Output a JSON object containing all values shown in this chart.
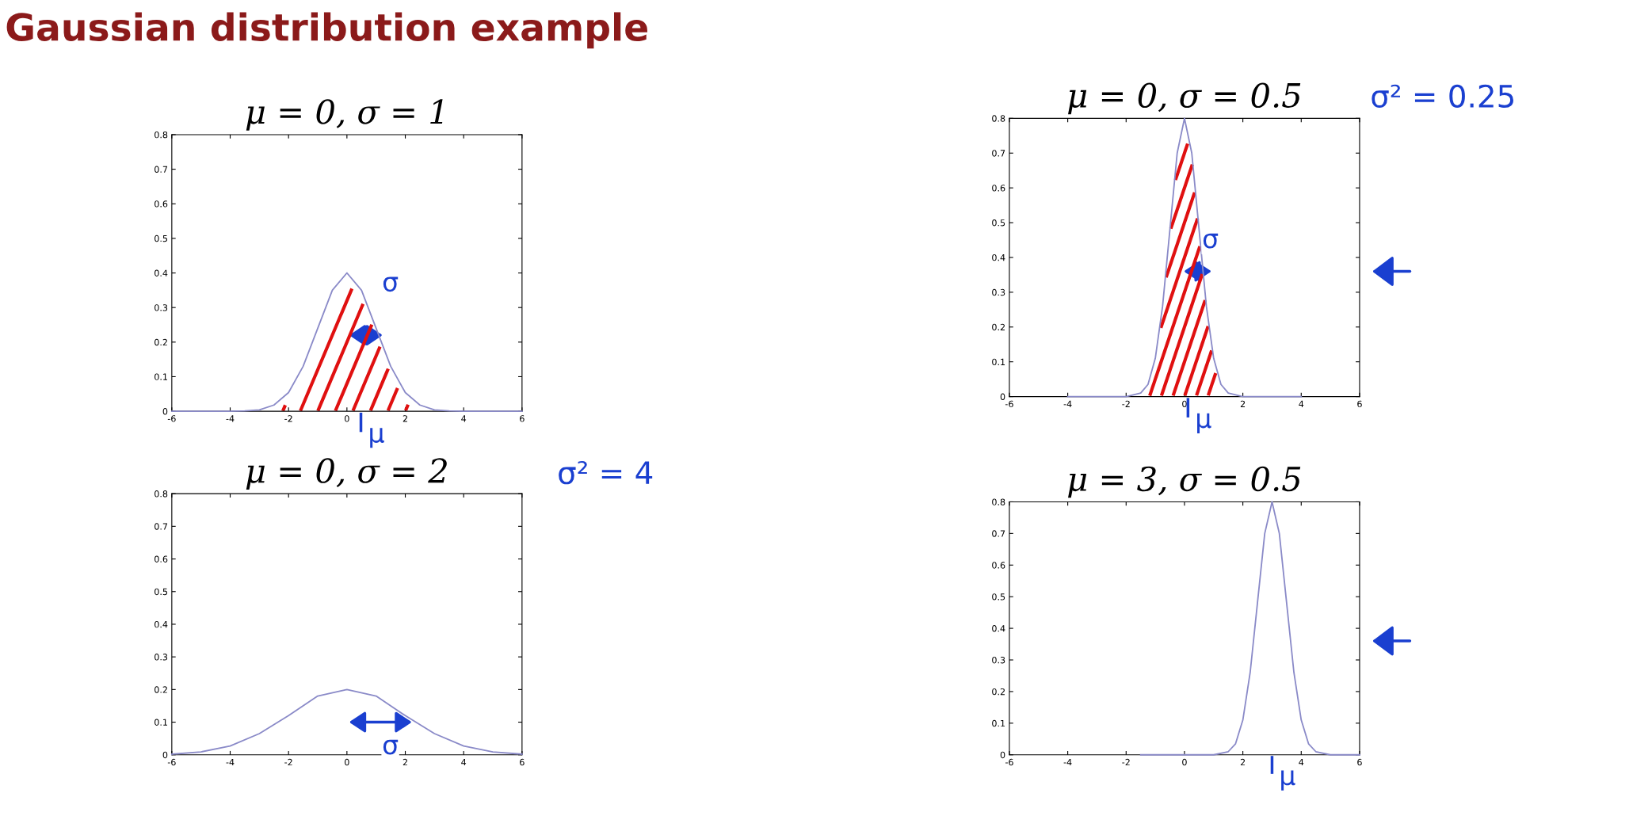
{
  "chart_data": [
    {
      "type": "line",
      "title": "μ = 0, σ = 1",
      "annotations": [
        "Gaussian distribution example",
        "σ",
        "μ"
      ],
      "series": [
        {
          "color": "#8a8ac8",
          "x": [
            -6,
            -4,
            -3.5,
            -3,
            -2.5,
            -2,
            -1.5,
            -1,
            -0.5,
            0,
            0.5,
            1,
            1.5,
            2,
            2.5,
            3,
            3.5,
            4,
            6
          ],
          "values": [
            0,
            0,
            0.001,
            0.004,
            0.018,
            0.054,
            0.13,
            0.24,
            0.35,
            0.4,
            0.35,
            0.24,
            0.13,
            0.054,
            0.018,
            0.004,
            0.001,
            0,
            0
          ]
        }
      ],
      "xlim": [
        -6,
        6
      ],
      "ylim": [
        0,
        0.8
      ],
      "xticks": [
        -6,
        -4,
        -2,
        0,
        2,
        4,
        6
      ],
      "yticks": [
        0,
        0.1,
        0.2,
        0.3,
        0.4,
        0.5,
        0.6,
        0.7,
        0.8
      ],
      "grid": false,
      "legend": false,
      "marker": "none",
      "line_style": "solid"
    },
    {
      "type": "line",
      "title": "μ = 0, σ = 0.5",
      "annotations": [
        "σ² = 0.25",
        "σ",
        "μ"
      ],
      "series": [
        {
          "color": "#8a8ac8",
          "x": [
            -4,
            -2,
            -1.5,
            -1.25,
            -1,
            -0.75,
            -0.5,
            -0.25,
            0,
            0.25,
            0.5,
            0.75,
            1,
            1.25,
            1.5,
            2,
            4
          ],
          "values": [
            0,
            0,
            0.01,
            0.035,
            0.11,
            0.26,
            0.48,
            0.7,
            0.8,
            0.7,
            0.48,
            0.26,
            0.11,
            0.035,
            0.01,
            0,
            0
          ]
        }
      ],
      "xlim": [
        -6,
        6
      ],
      "ylim": [
        0,
        0.8
      ],
      "xticks": [
        -6,
        -4,
        -2,
        0,
        2,
        4,
        6
      ],
      "yticks": [
        0,
        0.1,
        0.2,
        0.3,
        0.4,
        0.5,
        0.6,
        0.7,
        0.8
      ],
      "grid": false,
      "legend": false,
      "marker": "none",
      "line_style": "solid"
    },
    {
      "type": "line",
      "title": "μ = 0, σ = 2",
      "annotations": [
        "σ² = 4",
        "σ"
      ],
      "series": [
        {
          "color": "#8a8ac8",
          "x": [
            -6,
            -5,
            -4,
            -3,
            -2,
            -1,
            0,
            1,
            2,
            3,
            4,
            5,
            6
          ],
          "values": [
            0.002,
            0.009,
            0.027,
            0.065,
            0.12,
            0.18,
            0.2,
            0.18,
            0.12,
            0.065,
            0.027,
            0.009,
            0.002
          ]
        }
      ],
      "xlim": [
        -6,
        6
      ],
      "ylim": [
        0,
        0.8
      ],
      "xticks": [
        -6,
        -4,
        -2,
        0,
        2,
        4,
        6
      ],
      "yticks": [
        0,
        0.1,
        0.2,
        0.3,
        0.4,
        0.5,
        0.6,
        0.7,
        0.8
      ],
      "grid": false,
      "legend": false,
      "marker": "none",
      "line_style": "solid"
    },
    {
      "type": "line",
      "title": "μ = 3, σ = 0.5",
      "annotations": [
        "μ"
      ],
      "series": [
        {
          "color": "#8a8ac8",
          "x": [
            -1.5,
            1,
            1.5,
            1.75,
            2,
            2.25,
            2.5,
            2.75,
            3,
            3.25,
            3.5,
            3.75,
            4,
            4.25,
            4.5,
            5,
            6
          ],
          "values": [
            0,
            0,
            0.01,
            0.035,
            0.11,
            0.26,
            0.48,
            0.7,
            0.8,
            0.7,
            0.48,
            0.26,
            0.11,
            0.035,
            0.01,
            0,
            0
          ]
        }
      ],
      "xlim": [
        -6,
        6
      ],
      "ylim": [
        0,
        0.8
      ],
      "xticks": [
        -6,
        -4,
        -2,
        0,
        2,
        4,
        6
      ],
      "yticks": [
        0,
        0.1,
        0.2,
        0.3,
        0.4,
        0.5,
        0.6,
        0.7,
        0.8
      ],
      "grid": false,
      "legend": false,
      "marker": "none",
      "line_style": "solid"
    }
  ]
}
